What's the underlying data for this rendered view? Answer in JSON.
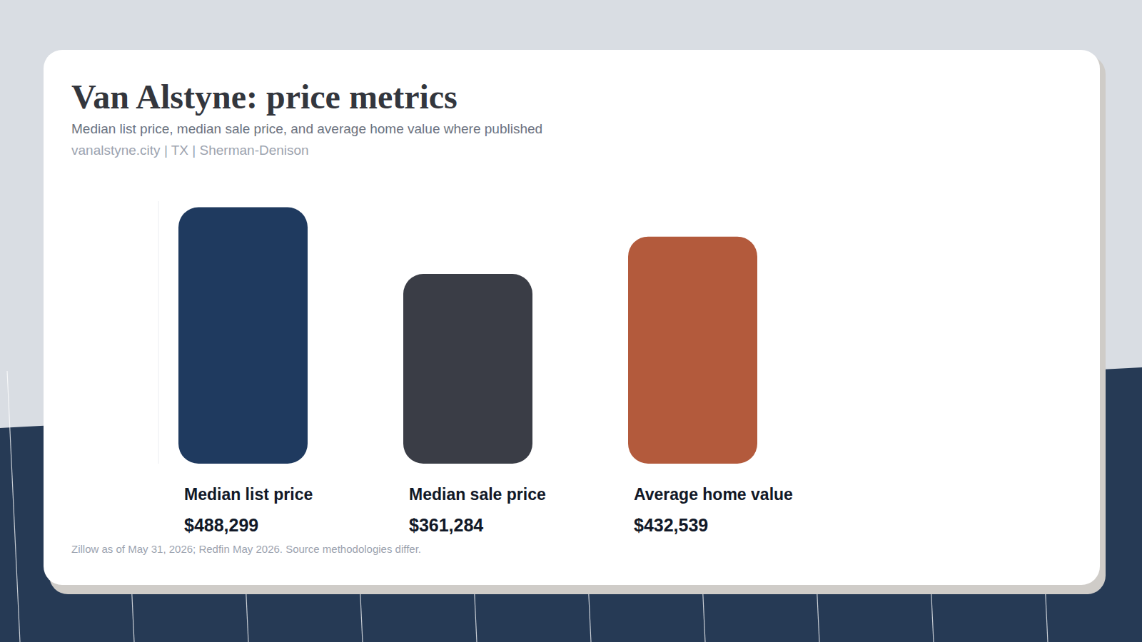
{
  "chart_data": {
    "type": "bar",
    "title": "Van Alstyne: price metrics",
    "subtitle": "Median list price, median sale price, and average home value where published",
    "annotations": [
      "vanalstyne.city | TX | Sherman-Denison",
      "Zillow as of May 31, 2026; Redfin May 2026. Source methodologies differ."
    ],
    "categories": [
      "Median list price",
      "Median sale price",
      "Average home value"
    ],
    "values": [
      488299,
      361284,
      432539
    ],
    "value_labels": [
      "$488,299",
      "$361,284",
      "$432,539"
    ],
    "colors": [
      "#1f3a5f",
      "#3a3d46",
      "#b35a3c"
    ],
    "ylim": [
      0,
      500000
    ],
    "grid": false,
    "data_labels": true,
    "tick_labels": false
  }
}
